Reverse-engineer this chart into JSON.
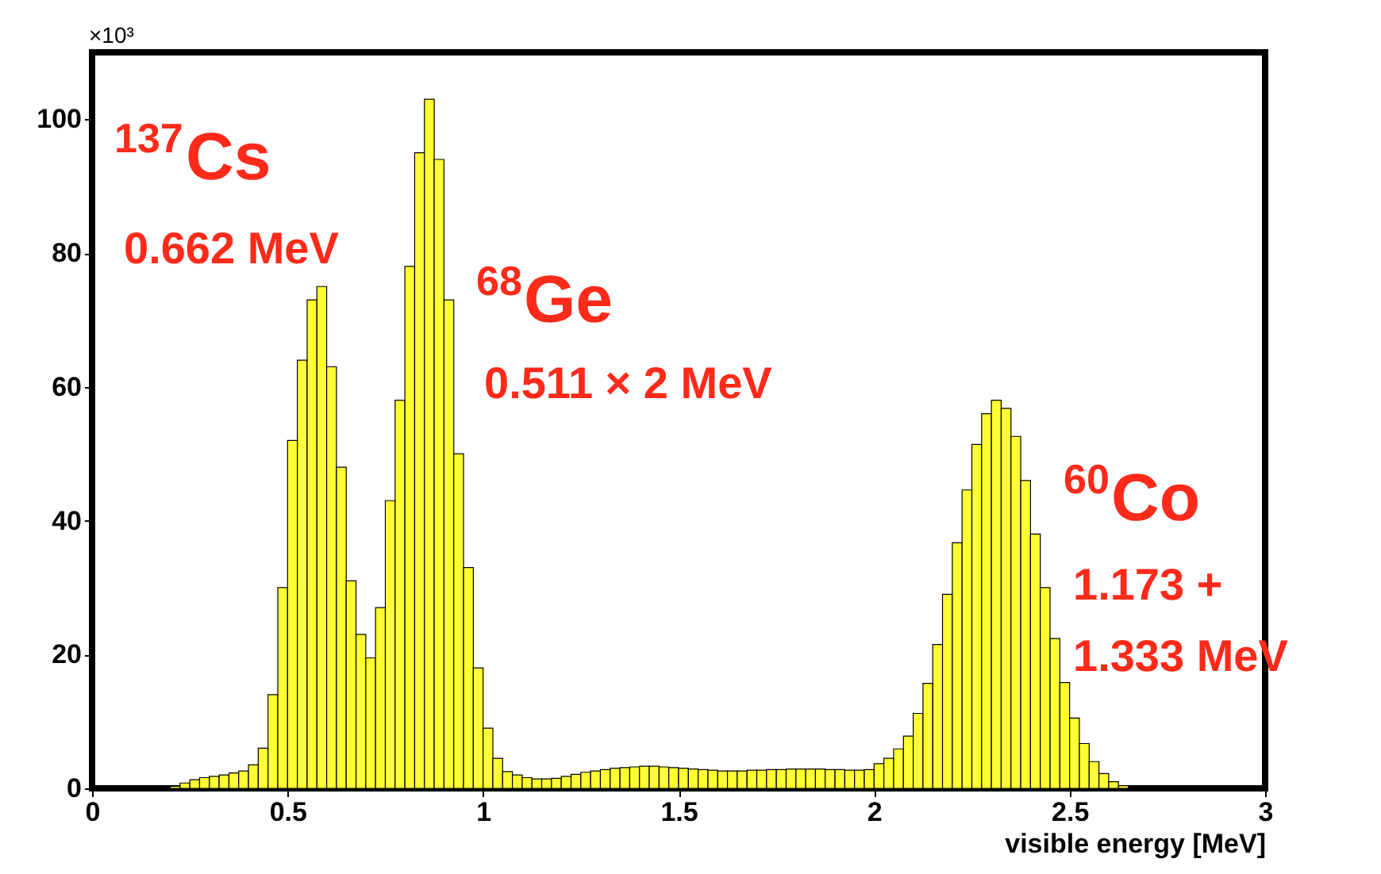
{
  "chart_data": {
    "type": "histogram",
    "color": "#ffff33",
    "bins": [
      0.2,
      0.225,
      0.25,
      0.275,
      0.3,
      0.325,
      0.35,
      0.375,
      0.4,
      0.425,
      0.45,
      0.475,
      0.5,
      0.525,
      0.55,
      0.575,
      0.6,
      0.625,
      0.65,
      0.675,
      0.7,
      0.725,
      0.75,
      0.775,
      0.8,
      0.825,
      0.85,
      0.875,
      0.9,
      0.925,
      0.95,
      0.975,
      1.0,
      1.025,
      1.05,
      1.075,
      1.1,
      1.125,
      1.15,
      1.175,
      1.2,
      1.225,
      1.25,
      1.275,
      1.3,
      1.325,
      1.35,
      1.375,
      1.4,
      1.425,
      1.45,
      1.475,
      1.5,
      1.525,
      1.55,
      1.575,
      1.6,
      1.625,
      1.65,
      1.675,
      1.7,
      1.725,
      1.75,
      1.775,
      1.8,
      1.825,
      1.85,
      1.875,
      1.9,
      1.925,
      1.95,
      1.975,
      2.0,
      2.025,
      2.05,
      2.075,
      2.1,
      2.125,
      2.15,
      2.175,
      2.2,
      2.225,
      2.25,
      2.275,
      2.3,
      2.325,
      2.35,
      2.375,
      2.4,
      2.425,
      2.45,
      2.475,
      2.5,
      2.525,
      2.55,
      2.575,
      2.6,
      2.625,
      2.65
    ],
    "values": [
      0.3,
      0.8,
      1.3,
      1.6,
      1.8,
      2.0,
      2.3,
      2.6,
      3.5,
      6,
      14,
      30,
      52,
      64,
      73,
      75,
      63,
      48,
      31,
      23,
      19.5,
      27,
      43,
      58,
      78,
      95,
      103,
      94,
      73,
      50,
      33,
      18,
      9,
      4.5,
      2.5,
      2.0,
      1.6,
      1.4,
      1.4,
      1.5,
      1.8,
      2.1,
      2.4,
      2.6,
      2.8,
      3.0,
      3.1,
      3.2,
      3.3,
      3.3,
      3.2,
      3.1,
      3.0,
      2.9,
      2.8,
      2.7,
      2.6,
      2.6,
      2.6,
      2.7,
      2.7,
      2.8,
      2.8,
      2.9,
      2.9,
      2.9,
      2.9,
      2.8,
      2.8,
      2.7,
      2.7,
      2.8,
      3.7,
      4.5,
      5.9,
      7.8,
      11.2,
      15.7,
      21.5,
      29,
      36.7,
      44.6,
      51.4,
      56,
      58,
      56.8,
      52.6,
      46,
      38,
      30,
      22.4,
      15.8,
      10.5,
      6.7,
      4,
      2.2,
      1.0,
      0.4
    ],
    "xlim": [
      0,
      3
    ],
    "ylim": [
      0,
      110
    ],
    "xticks": [
      0,
      0.5,
      1,
      1.5,
      2,
      2.5,
      3
    ],
    "yticks": [
      0,
      20,
      40,
      60,
      80,
      100
    ],
    "xlabel": "visible energy [MeV]",
    "grid": false,
    "annotations": [
      "×10³",
      "$^{137}$Cs",
      "0.662 MeV",
      "$^{68}$Ge",
      "0.511 × 2 MeV",
      "$^{60}$Co",
      "1.173 +",
      "1.333 MeV"
    ]
  }
}
